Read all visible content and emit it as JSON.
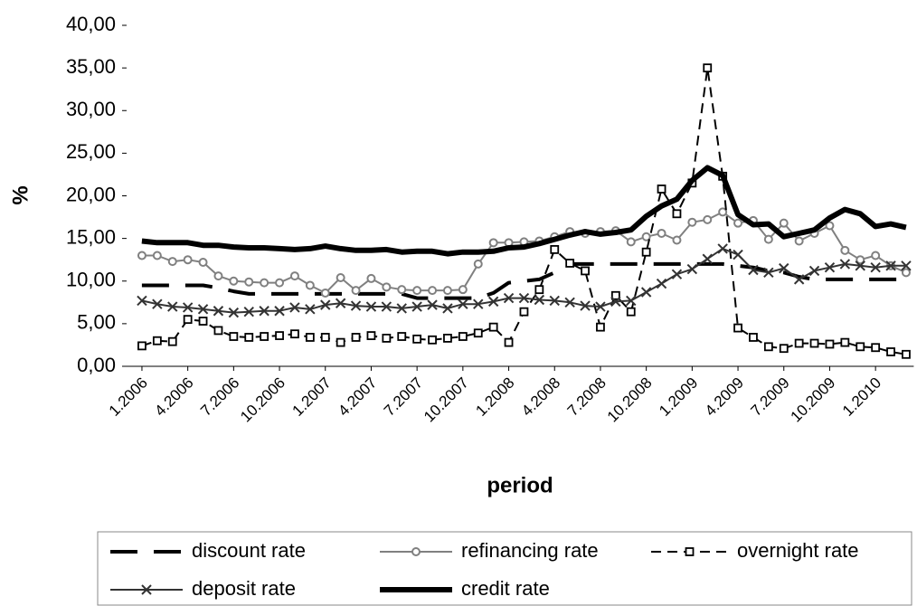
{
  "chart_data": {
    "type": "line",
    "x_label": "period",
    "y_label": "%",
    "categories": [
      "1.2006",
      null,
      null,
      "4.2006",
      null,
      null,
      "7.2006",
      null,
      null,
      "10.2006",
      null,
      null,
      "1.2007",
      null,
      null,
      "4.2007",
      null,
      null,
      "7.2007",
      null,
      null,
      "10.2007",
      null,
      null,
      "1.2008",
      null,
      null,
      "4.2008",
      null,
      null,
      "7.2008",
      null,
      null,
      "10.2008",
      null,
      null,
      "1.2009",
      null,
      null,
      "4.2009",
      null,
      null,
      "7.2009",
      null,
      null,
      "10.2009",
      null,
      null,
      "1.2010",
      null,
      null
    ],
    "ylim": [
      0,
      40
    ],
    "yticks": [
      {
        "value": 0,
        "label": "0,00"
      },
      {
        "value": 5,
        "label": "5,00"
      },
      {
        "value": 10,
        "label": "10,00"
      },
      {
        "value": 15,
        "label": "15,00"
      },
      {
        "value": 20,
        "label": "20,00"
      },
      {
        "value": 25,
        "label": "25,00"
      },
      {
        "value": 30,
        "label": "30,00"
      },
      {
        "value": 35,
        "label": "35,00"
      },
      {
        "value": 40,
        "label": "40,00"
      }
    ],
    "grid": false,
    "legend": "bottom",
    "series": [
      {
        "name": "discount rate",
        "color": "#000000",
        "line_style": "long-dash",
        "marker": "none",
        "weight": "bold",
        "values": [
          9.5,
          9.5,
          9.5,
          9.5,
          9.5,
          9.2,
          8.8,
          8.5,
          8.5,
          8.5,
          8.5,
          8.5,
          8.5,
          8.5,
          8.5,
          8.5,
          8.5,
          8.5,
          8.0,
          8.0,
          8.0,
          8.0,
          8.0,
          8.6,
          9.8,
          10.0,
          10.2,
          11.0,
          12.0,
          12.0,
          12.0,
          12.0,
          12.0,
          12.0,
          12.0,
          12.0,
          12.0,
          12.0,
          12.0,
          11.8,
          11.6,
          11.2,
          11.0,
          10.5,
          10.2,
          10.2,
          10.2,
          10.2,
          10.2,
          10.2,
          10.2
        ]
      },
      {
        "name": "refinancing rate",
        "color": "#808080",
        "line_style": "solid",
        "marker": "circle",
        "weight": "normal",
        "values": [
          13.0,
          13.0,
          12.3,
          12.5,
          12.2,
          10.6,
          10.0,
          9.9,
          9.8,
          9.8,
          10.6,
          9.5,
          8.6,
          10.4,
          8.9,
          10.3,
          9.3,
          9.0,
          8.9,
          8.9,
          8.9,
          9.0,
          12.0,
          14.5,
          14.5,
          14.6,
          14.7,
          15.2,
          15.8,
          15.6,
          15.8,
          15.9,
          14.6,
          15.2,
          15.6,
          14.8,
          16.9,
          17.2,
          18.1,
          16.8,
          17.1,
          14.9,
          16.8,
          14.7,
          15.6,
          16.5,
          13.6,
          12.5,
          13.0,
          11.8,
          11.0
        ]
      },
      {
        "name": "overnight rate",
        "color": "#000000",
        "line_style": "dash",
        "marker": "square",
        "weight": "normal",
        "values": [
          2.4,
          3.0,
          2.9,
          5.5,
          5.3,
          4.2,
          3.5,
          3.4,
          3.5,
          3.6,
          3.8,
          3.4,
          3.4,
          2.8,
          3.4,
          3.6,
          3.3,
          3.5,
          3.2,
          3.1,
          3.3,
          3.5,
          3.9,
          4.6,
          2.8,
          6.4,
          9.0,
          13.7,
          12.1,
          11.2,
          4.6,
          8.3,
          6.4,
          13.4,
          20.8,
          17.9,
          21.5,
          35.0,
          22.3,
          4.5,
          3.4,
          2.3,
          2.1,
          2.7,
          2.7,
          2.6,
          2.8,
          2.3,
          2.2,
          1.7,
          1.4
        ]
      },
      {
        "name": "deposit rate",
        "color": "#333333",
        "line_style": "solid",
        "marker": "x",
        "weight": "normal",
        "values": [
          7.7,
          7.3,
          7.0,
          6.9,
          6.7,
          6.5,
          6.3,
          6.4,
          6.5,
          6.5,
          6.9,
          6.7,
          7.2,
          7.4,
          7.1,
          7.0,
          7.0,
          6.8,
          7.0,
          7.2,
          6.8,
          7.3,
          7.3,
          7.6,
          8.0,
          8.0,
          7.8,
          7.7,
          7.5,
          7.1,
          7.0,
          7.6,
          7.7,
          8.7,
          9.7,
          10.8,
          11.4,
          12.6,
          13.8,
          13.1,
          11.3,
          11.0,
          11.5,
          10.2,
          11.2,
          11.6,
          12.0,
          11.8,
          11.6,
          11.8,
          11.8
        ]
      },
      {
        "name": "credit rate",
        "color": "#000000",
        "line_style": "solid",
        "marker": "none",
        "weight": "thick",
        "values": [
          14.7,
          14.5,
          14.5,
          14.5,
          14.2,
          14.2,
          14.0,
          13.9,
          13.9,
          13.8,
          13.7,
          13.8,
          14.1,
          13.8,
          13.6,
          13.6,
          13.7,
          13.4,
          13.5,
          13.5,
          13.2,
          13.4,
          13.4,
          13.5,
          13.9,
          14.0,
          14.4,
          14.9,
          15.4,
          15.8,
          15.5,
          15.7,
          16.0,
          17.6,
          18.8,
          19.6,
          21.8,
          23.3,
          22.4,
          17.8,
          16.6,
          16.7,
          15.2,
          15.6,
          16.0,
          17.4,
          18.4,
          17.9,
          16.4,
          16.7,
          16.3
        ]
      }
    ]
  }
}
